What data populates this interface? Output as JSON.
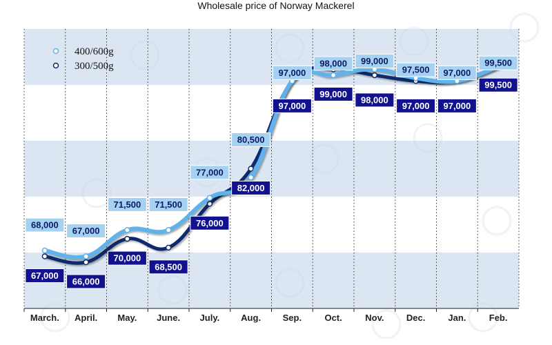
{
  "chart_data": {
    "type": "line",
    "title": "Wholesale price of Norway Mackerel",
    "categories": [
      "March.",
      "April.",
      "May.",
      "June.",
      "July.",
      "Aug.",
      "Sep.",
      "Oct.",
      "Nov.",
      "Dec.",
      "Jan.",
      "Feb."
    ],
    "series": [
      {
        "name": "400/600g",
        "color": "#5fb3ea",
        "values": [
          68000,
          67000,
          71500,
          71500,
          77000,
          80500,
          97000,
          98000,
          99000,
          97500,
          97000,
          99500
        ],
        "labels": [
          "68,000",
          "67,000",
          "71,500",
          "71,500",
          "77,000",
          "80,500",
          "97,000",
          "98,000",
          "99,000",
          "97,500",
          "97,000",
          "99,500"
        ]
      },
      {
        "name": "300/500g",
        "color": "#0d2a6e",
        "values": [
          67000,
          66000,
          70000,
          68500,
          76000,
          82000,
          97000,
          99000,
          98000,
          97000,
          97000,
          99500
        ],
        "labels": [
          "67,000",
          "66,000",
          "70,000",
          "68,500",
          "76,000",
          "82,000",
          "97,000",
          "99,000",
          "98,000",
          "97,000",
          "97,000",
          "99,500"
        ]
      }
    ],
    "xlabel": "",
    "ylabel": "",
    "grid": "vertical dotted, horizontal bands",
    "legend": "top-left"
  }
}
